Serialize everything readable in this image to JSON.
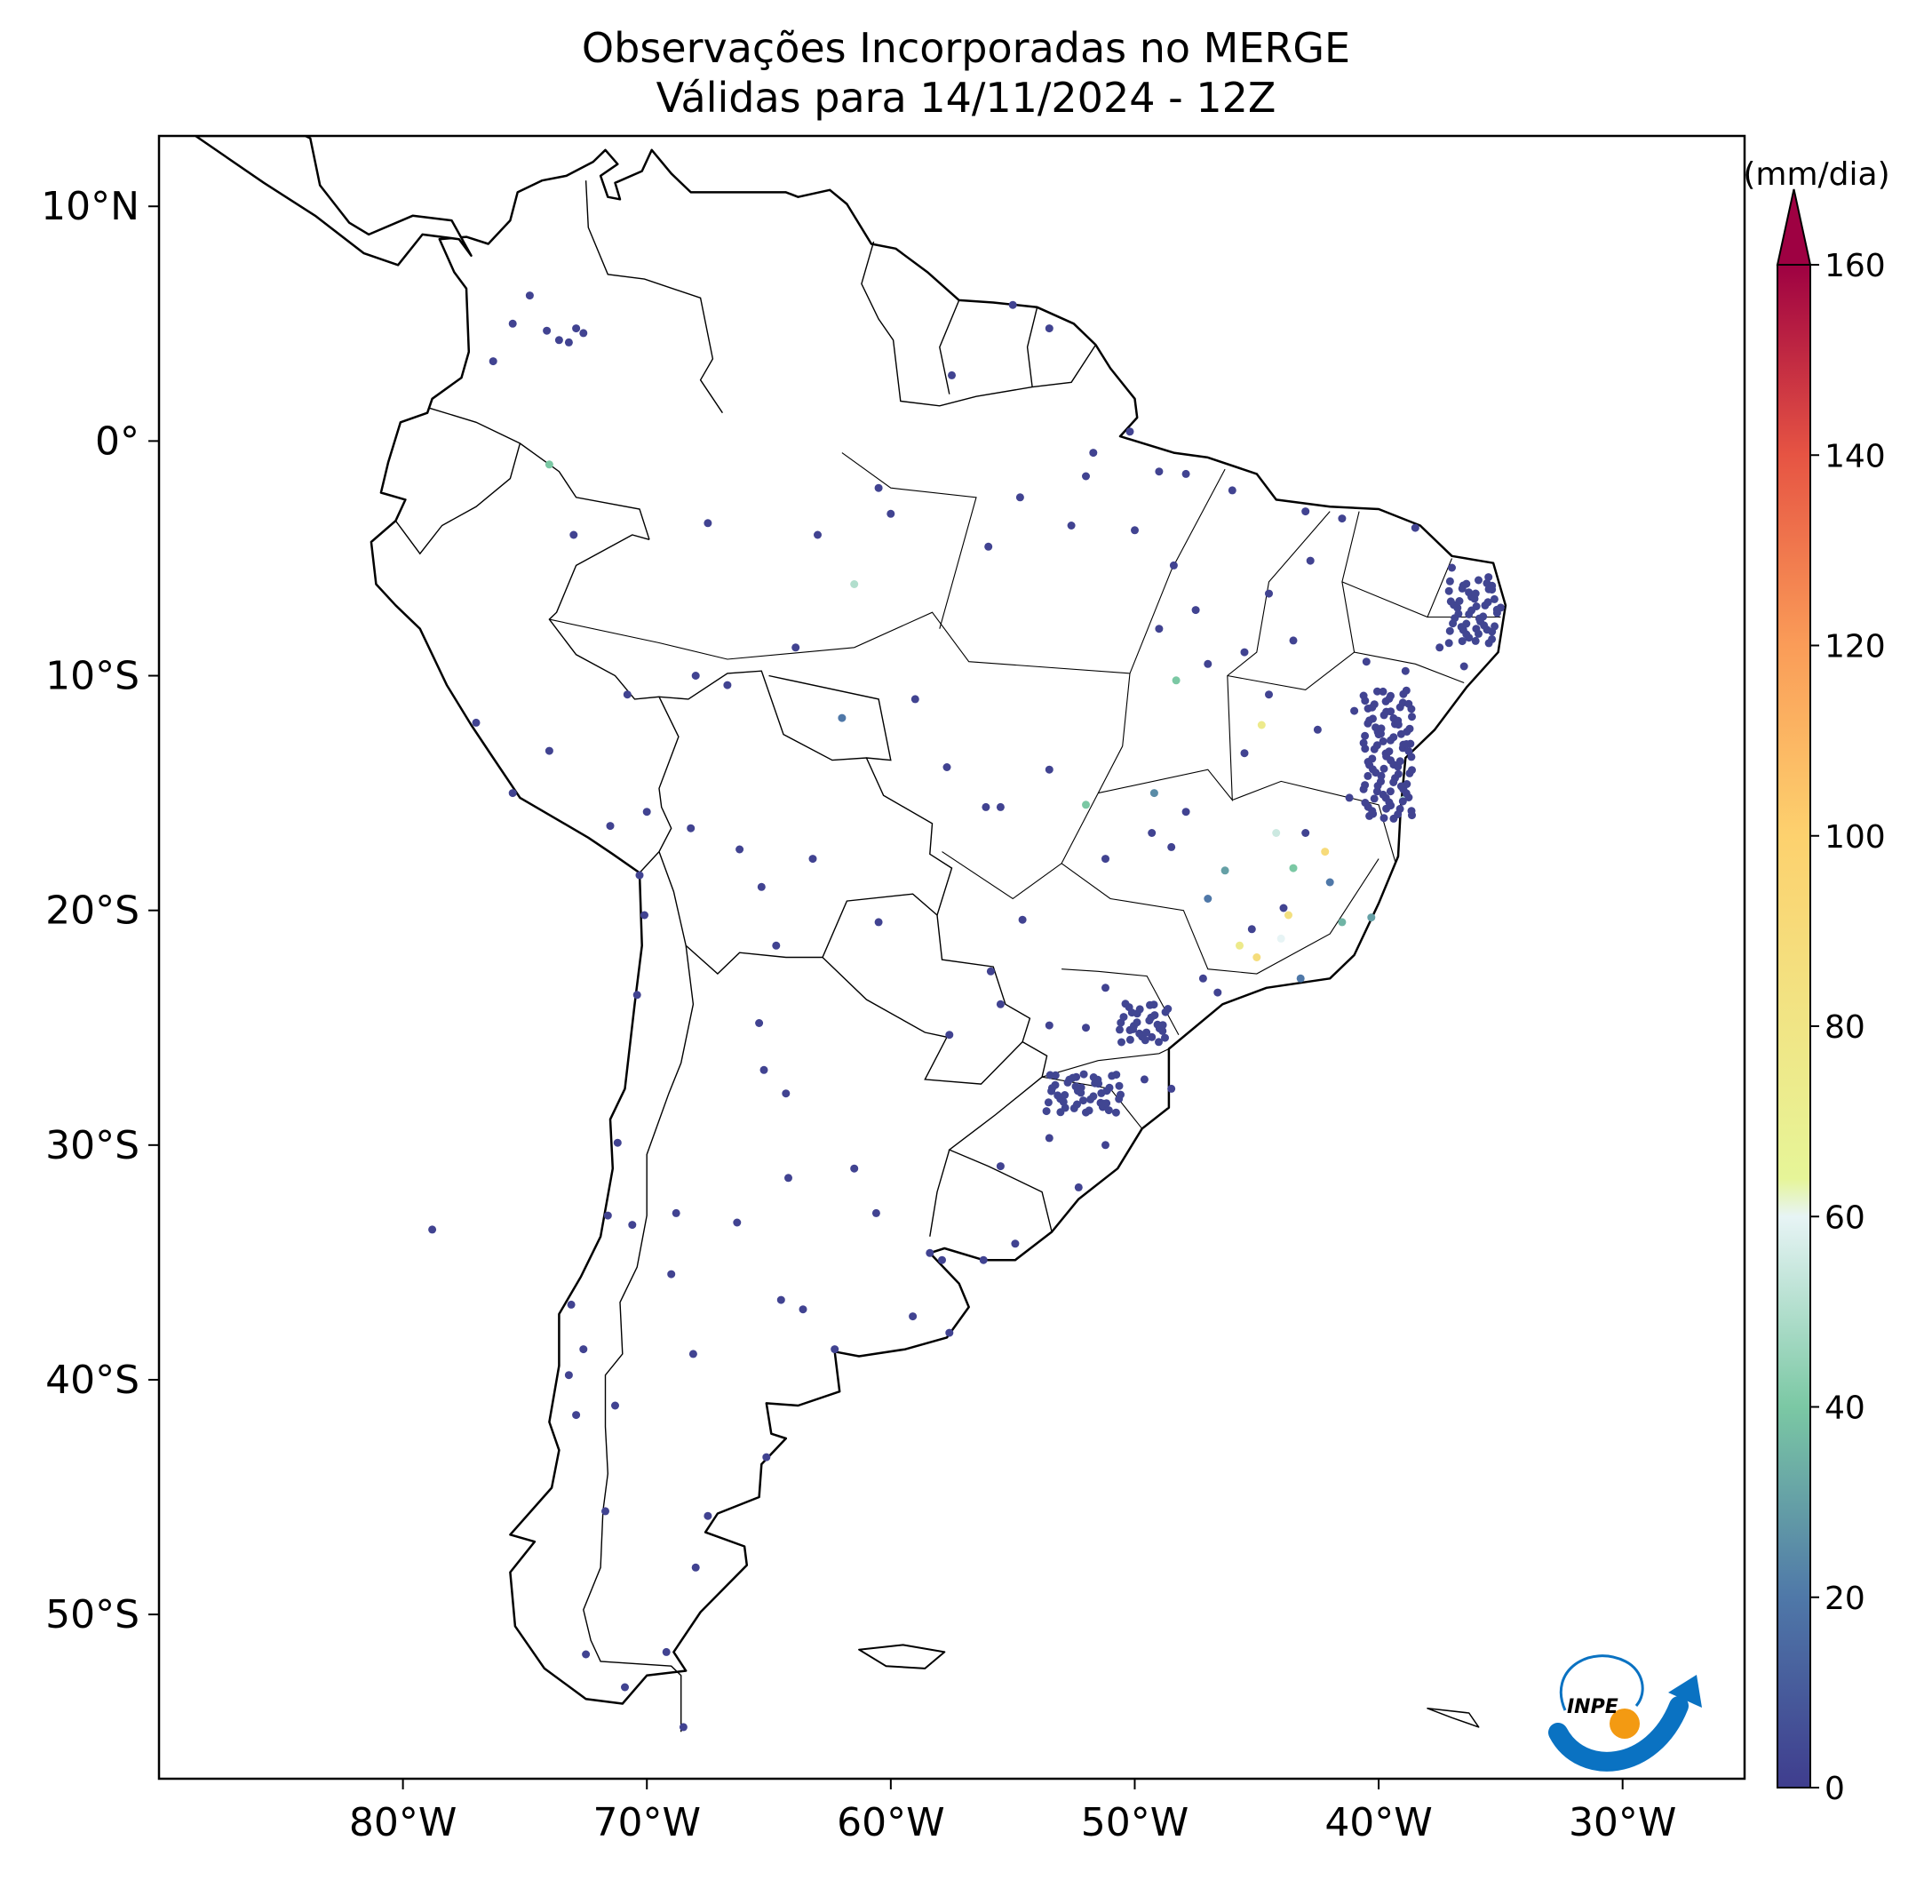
{
  "title": {
    "line1": "Observações Incorporadas no MERGE",
    "line2": "Válidas para 14/11/2024 - 12Z"
  },
  "map": {
    "lon_range": [
      -90,
      -25
    ],
    "lat_range": [
      -57,
      13
    ],
    "lon_ticks": [
      {
        "value": -80,
        "label": "80°W"
      },
      {
        "value": -70,
        "label": "70°W"
      },
      {
        "value": -60,
        "label": "60°W"
      },
      {
        "value": -50,
        "label": "50°W"
      },
      {
        "value": -40,
        "label": "40°W"
      },
      {
        "value": -30,
        "label": "30°W"
      }
    ],
    "lat_ticks": [
      {
        "value": 10,
        "label": "10°N"
      },
      {
        "value": 0,
        "label": "0°"
      },
      {
        "value": -10,
        "label": "10°S"
      },
      {
        "value": -20,
        "label": "20°S"
      },
      {
        "value": -30,
        "label": "30°S"
      },
      {
        "value": -40,
        "label": "40°S"
      },
      {
        "value": -50,
        "label": "50°S"
      }
    ],
    "colors": {
      "land_border": "#000000",
      "station_default": "#3f3d8e"
    }
  },
  "colorbar": {
    "unit": "(mm/dia)",
    "min": 0,
    "max": 160,
    "extend": "max",
    "ticks": [
      {
        "value": 0,
        "label": "0"
      },
      {
        "value": 20,
        "label": "20"
      },
      {
        "value": 40,
        "label": "40"
      },
      {
        "value": 60,
        "label": "60"
      },
      {
        "value": 80,
        "label": "80"
      },
      {
        "value": 100,
        "label": "100"
      },
      {
        "value": 120,
        "label": "120"
      },
      {
        "value": 140,
        "label": "140"
      },
      {
        "value": 160,
        "label": "160"
      }
    ],
    "colormap": [
      {
        "value": 0,
        "color": "#3f3d8e"
      },
      {
        "value": 20,
        "color": "#4f78a8"
      },
      {
        "value": 40,
        "color": "#7bc8a4"
      },
      {
        "value": 60,
        "color": "#e7f4f5"
      },
      {
        "value": 64,
        "color": "#e6f598"
      },
      {
        "value": 100,
        "color": "#fdd16e"
      },
      {
        "value": 120,
        "color": "#fa9c58"
      },
      {
        "value": 140,
        "color": "#e65443"
      },
      {
        "value": 160,
        "color": "#9e0142"
      }
    ]
  },
  "logo": {
    "text": "INPE",
    "colors": {
      "blue": "#0a72c2",
      "orange": "#f39a12"
    }
  }
}
